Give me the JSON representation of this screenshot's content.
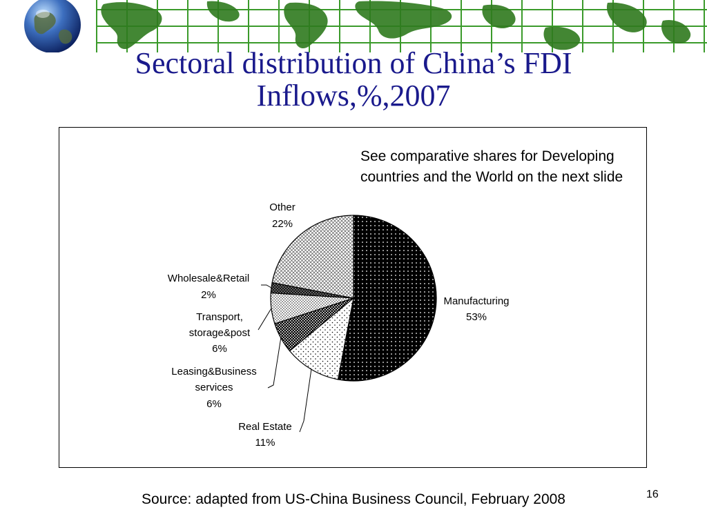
{
  "slide": {
    "title_lines": [
      "Sectoral distribution of China’s FDI",
      "Inflows,%,2007"
    ],
    "note": "See comparative shares for Developing countries and the World on the next slide",
    "source": "Source: adapted from US-China Business Council, February 2008",
    "slide_number": "16"
  },
  "colors": {
    "title": "#1a1a8c",
    "banner_green": "#3a9a2a",
    "banner_land": "#2f7a1e",
    "banner_bg": "#ffffff"
  },
  "chart_data": {
    "type": "pie",
    "title": "",
    "slices": [
      {
        "label": "Manufacturing",
        "value": 53,
        "value_label": "53%",
        "pattern": "dense-dots"
      },
      {
        "label": "Real Estate",
        "value": 11,
        "value_label": "11%",
        "pattern": "sparse-dots"
      },
      {
        "label": "Leasing&Business services",
        "value": 6,
        "value_label": "6%",
        "pattern": "checker-dark"
      },
      {
        "label": "Transport, storage&post",
        "value": 6,
        "value_label": "6%",
        "pattern": "fine-dots"
      },
      {
        "label": "Wholesale&Retail",
        "value": 2,
        "value_label": "2%",
        "pattern": "crosshatch-dark"
      },
      {
        "label": "Other",
        "value": 22,
        "value_label": "22%",
        "pattern": "crosshatch-light"
      }
    ],
    "legend": "none",
    "labels": "outside with leader lines"
  }
}
